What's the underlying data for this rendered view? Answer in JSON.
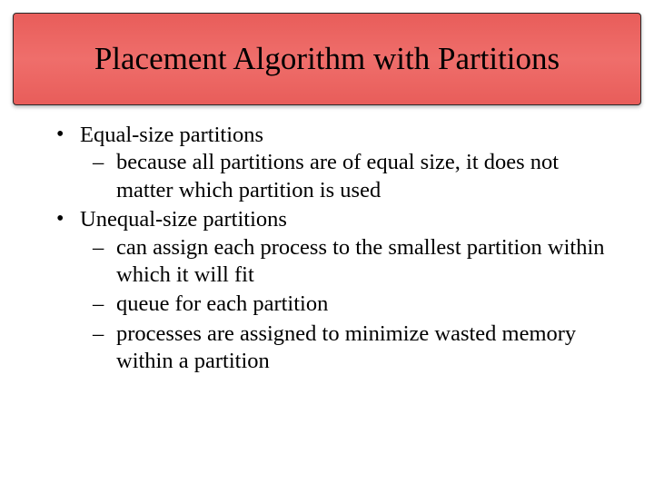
{
  "title": "Placement Algorithm with Partitions",
  "bullets": [
    {
      "text": "Equal-size partitions",
      "subs": [
        "because all partitions are of equal size, it does not matter which partition is used"
      ]
    },
    {
      "text": "Unequal-size partitions",
      "subs": [
        "can assign each process to the smallest partition within which it will fit",
        "queue for each partition",
        "processes are assigned to minimize wasted memory within a partition"
      ]
    }
  ],
  "colors": {
    "title_bg": "#e85d5a",
    "title_text": "#000000",
    "body_text": "#000000",
    "page_bg": "#ffffff"
  },
  "typography": {
    "title_fontsize": 35,
    "body_fontsize": 24.5,
    "font_family": "Times New Roman"
  }
}
